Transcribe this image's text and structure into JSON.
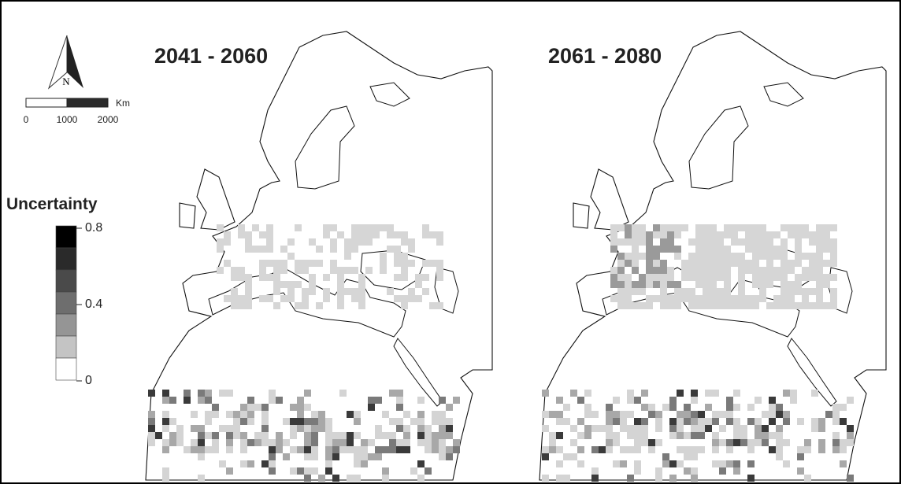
{
  "panels": [
    {
      "title": "2041 - 2060"
    },
    {
      "title": "2061 - 2080"
    }
  ],
  "north_arrow": {
    "label": "N"
  },
  "scale_bar": {
    "unit": "Km",
    "labels": [
      "0",
      "1000",
      "2000"
    ]
  },
  "legend": {
    "title": "Uncertainty",
    "labels": [
      "0.8",
      "0.4",
      "0"
    ]
  }
}
